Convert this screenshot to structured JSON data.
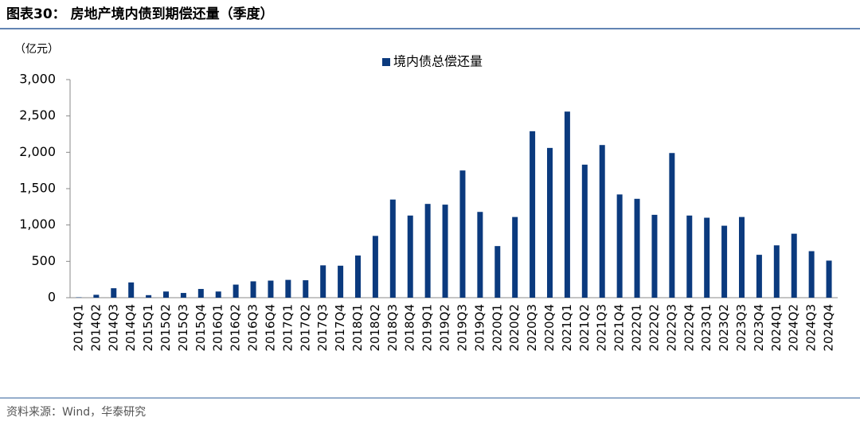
{
  "chart_data": {
    "type": "bar",
    "title": "图表30： 房地产境内债到期偿还量（季度）",
    "y_unit": "（亿元）",
    "categories": [
      "2014Q1",
      "2014Q2",
      "2014Q3",
      "2014Q4",
      "2015Q1",
      "2015Q2",
      "2015Q3",
      "2015Q4",
      "2016Q1",
      "2016Q2",
      "2016Q3",
      "2016Q4",
      "2017Q1",
      "2017Q2",
      "2017Q3",
      "2017Q4",
      "2018Q1",
      "2018Q2",
      "2018Q3",
      "2018Q4",
      "2019Q1",
      "2019Q2",
      "2019Q3",
      "2019Q4",
      "2020Q1",
      "2020Q2",
      "2020Q3",
      "2020Q4",
      "2021Q1",
      "2021Q2",
      "2021Q3",
      "2021Q4",
      "2022Q1",
      "2022Q2",
      "2022Q3",
      "2022Q4",
      "2023Q1",
      "2023Q2",
      "2023Q3",
      "2023Q4",
      "2024Q1",
      "2024Q2",
      "2024Q3",
      "2024Q4"
    ],
    "series": [
      {
        "name": "境内债总偿还量",
        "color": "#0b3a7e",
        "values": [
          5,
          40,
          130,
          210,
          35,
          85,
          65,
          120,
          85,
          180,
          225,
          235,
          245,
          240,
          445,
          440,
          580,
          850,
          1350,
          1130,
          1290,
          1280,
          1750,
          1180,
          710,
          1110,
          2290,
          2060,
          2560,
          1830,
          2100,
          1420,
          1360,
          1140,
          1990,
          1130,
          1100,
          990,
          1110,
          590,
          720,
          880,
          640,
          510
        ]
      }
    ],
    "ylim": [
      0,
      3000
    ],
    "yticks": [
      0,
      500,
      {
        "value": 1000,
        "label": "1,000"
      },
      {
        "value": 1500,
        "label": "1,500"
      },
      {
        "value": 2000,
        "label": "2,000"
      },
      {
        "value": 2500,
        "label": "2,500"
      },
      {
        "value": 3000,
        "label": "3,000"
      }
    ],
    "legend": "top"
  },
  "source": "资料来源：Wind，华泰研究"
}
